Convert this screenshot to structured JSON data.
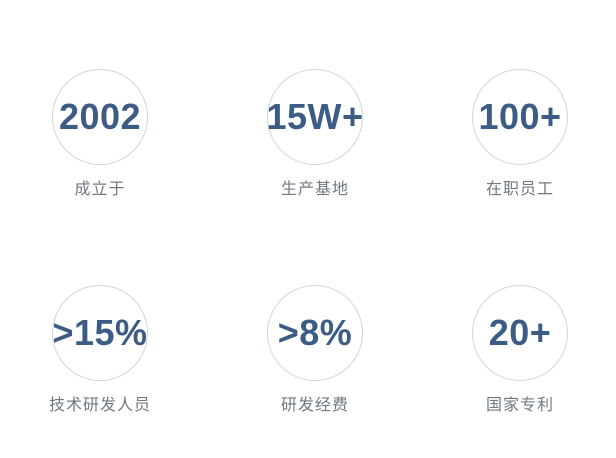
{
  "colors": {
    "value_color": "#3d5c85",
    "label_color": "#707880",
    "circle_border_color": "#ccd6df",
    "background": "#ffffff"
  },
  "stats": [
    {
      "value": "2002",
      "label": "成立于"
    },
    {
      "value": "15W+",
      "label": "生产基地"
    },
    {
      "value": "100+",
      "label": "在职员工"
    },
    {
      "value": ">15%",
      "label": "技术研发人员"
    },
    {
      "value": ">8%",
      "label": "研发经费"
    },
    {
      "value": "20+",
      "label": "国家专利"
    }
  ]
}
